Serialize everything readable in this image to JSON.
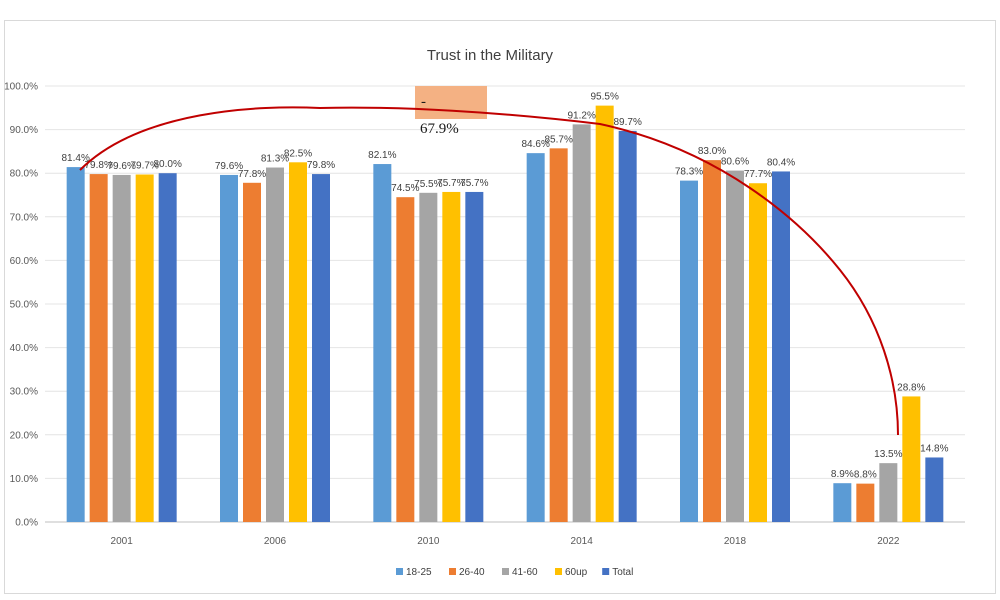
{
  "chart_data": {
    "type": "bar",
    "title": "Trust in the Military",
    "xlabel": "",
    "ylabel": "",
    "ylim": [
      0,
      100
    ],
    "yticks": [
      "0.0%",
      "10.0%",
      "20.0%",
      "30.0%",
      "40.0%",
      "50.0%",
      "60.0%",
      "70.0%",
      "80.0%",
      "90.0%",
      "100.0%"
    ],
    "categories": [
      "2001",
      "2006",
      "2010",
      "2014",
      "2018",
      "2022"
    ],
    "series": [
      {
        "name": "18-25",
        "color": "#5b9bd5",
        "values": [
          81.4,
          79.6,
          82.1,
          84.6,
          78.3,
          8.9
        ],
        "labels": [
          "81.4%",
          "79.6%",
          "82.1%",
          "84.6%",
          "78.3%",
          "8.9%"
        ]
      },
      {
        "name": "26-40",
        "color": "#ed7d31",
        "values": [
          79.8,
          77.8,
          74.5,
          85.7,
          83.0,
          8.8
        ],
        "labels": [
          "79.8%",
          "77.8%",
          "74.5%",
          "85.7%",
          "83.0%",
          "8.8%"
        ]
      },
      {
        "name": "41-60",
        "color": "#a5a5a5",
        "values": [
          79.6,
          81.3,
          75.5,
          91.2,
          80.6,
          13.5
        ],
        "labels": [
          "79.6%",
          "81.3%",
          "75.5%",
          "91.2%",
          "80.6%",
          "13.5%"
        ]
      },
      {
        "name": "60up",
        "color": "#ffc000",
        "values": [
          79.7,
          82.5,
          75.7,
          95.5,
          77.7,
          28.8
        ],
        "labels": [
          "79.7%",
          "82.5%",
          "75.7%",
          "95.5%",
          "77.7%",
          "28.8%"
        ]
      },
      {
        "name": "Total",
        "color": "#4472c4",
        "values": [
          80.0,
          79.8,
          75.7,
          89.7,
          80.4,
          14.8
        ],
        "labels": [
          "80.0%",
          "79.8%",
          "75.7%",
          "89.7%",
          "80.4%",
          "14.8%"
        ]
      }
    ],
    "legend_position": "bottom",
    "grid": true,
    "annotation": {
      "dash": "-",
      "text": "67.9%",
      "fill": "#f4b183",
      "curve_color": "#c00000"
    }
  }
}
